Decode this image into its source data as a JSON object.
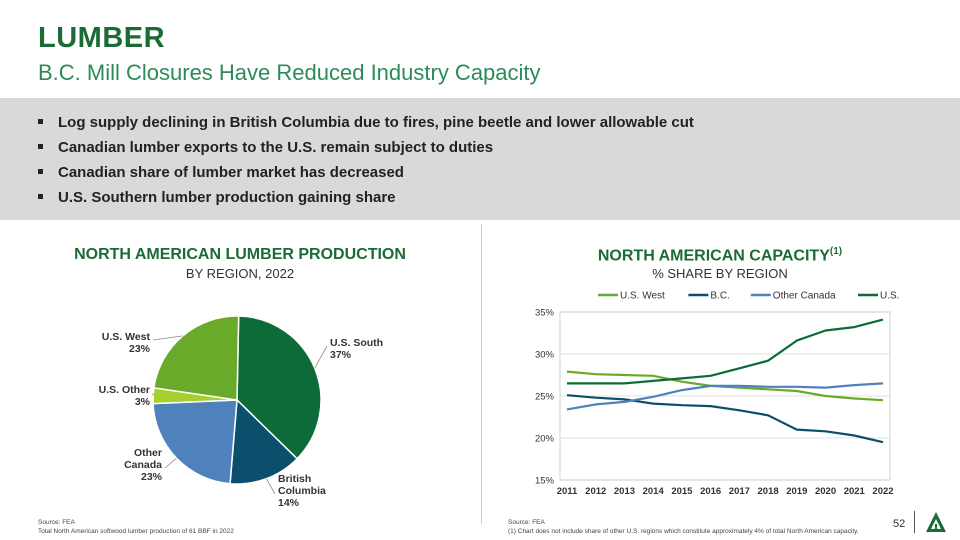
{
  "header": {
    "title": "LUMBER",
    "subtitle": "B.C. Mill Closures Have Reduced Industry Capacity"
  },
  "bullets": [
    "Log supply declining in British Columbia due to fires, pine beetle and lower allowable cut",
    "Canadian lumber exports to the U.S. remain subject to duties",
    "Canadian share of lumber market has decreased",
    "U.S. Southern lumber production gaining share"
  ],
  "left_panel": {
    "title": "NORTH AMERICAN LUMBER PRODUCTION",
    "subtitle": "BY REGION, 2022",
    "source": "Source: FEA",
    "note": "Total North American softwood lumber production of 61 BBF in 2022"
  },
  "right_panel": {
    "title": "NORTH AMERICAN CAPACITY",
    "title_sup": "(1)",
    "subtitle": "% SHARE BY REGION",
    "source": "Source: FEA",
    "note": "(1) Chart does not include share of other U.S. regions which constitute approximately 4% of total North American capacity."
  },
  "page_number": "52",
  "logo_icon": "tree-logo-icon",
  "chart_data": [
    {
      "type": "pie",
      "slices": [
        {
          "label": [
            "U.S. South"
          ],
          "pct_label": "37%",
          "value": 37,
          "color": "#0d6b3a"
        },
        {
          "label": [
            "British",
            "Columbia"
          ],
          "pct_label": "14%",
          "value": 14,
          "color": "#0b4f6c"
        },
        {
          "label": [
            "Other",
            "Canada"
          ],
          "pct_label": "23%",
          "value": 23,
          "color": "#4f81bd"
        },
        {
          "label": [
            "U.S. Other"
          ],
          "pct_label": "3%",
          "value": 3,
          "color": "#a6d02e"
        },
        {
          "label": [
            "U.S. West"
          ],
          "pct_label": "23%",
          "value": 23,
          "color": "#6aaa2a"
        }
      ]
    },
    {
      "type": "line",
      "x": [
        "2011",
        "2012",
        "2013",
        "2014",
        "2015",
        "2016",
        "2017",
        "2018",
        "2019",
        "2020",
        "2021",
        "2022"
      ],
      "y_ticks": [
        "15%",
        "20%",
        "25%",
        "30%",
        "35%"
      ],
      "ylim": [
        15,
        35
      ],
      "grid": true,
      "legend_position": "top",
      "series": [
        {
          "name": "U.S. West",
          "color": "#6aaa2a",
          "values": [
            27.9,
            27.6,
            27.5,
            27.4,
            26.7,
            26.2,
            26.0,
            25.8,
            25.6,
            25.0,
            24.7,
            24.5
          ]
        },
        {
          "name": "B.C.",
          "color": "#0b4f6c",
          "values": [
            25.1,
            24.8,
            24.6,
            24.1,
            23.9,
            23.8,
            23.3,
            22.7,
            21.0,
            20.8,
            20.3,
            19.5
          ]
        },
        {
          "name": "Other Canada",
          "color": "#4f81bd",
          "values": [
            23.4,
            24.0,
            24.3,
            24.9,
            25.7,
            26.2,
            26.2,
            26.1,
            26.1,
            26.0,
            26.3,
            26.5
          ]
        },
        {
          "name": "U.S. South",
          "color": "#0d6b3a",
          "values": [
            26.5,
            26.5,
            26.5,
            26.8,
            27.1,
            27.4,
            28.3,
            29.2,
            31.6,
            32.8,
            33.2,
            34.1
          ]
        }
      ]
    }
  ]
}
